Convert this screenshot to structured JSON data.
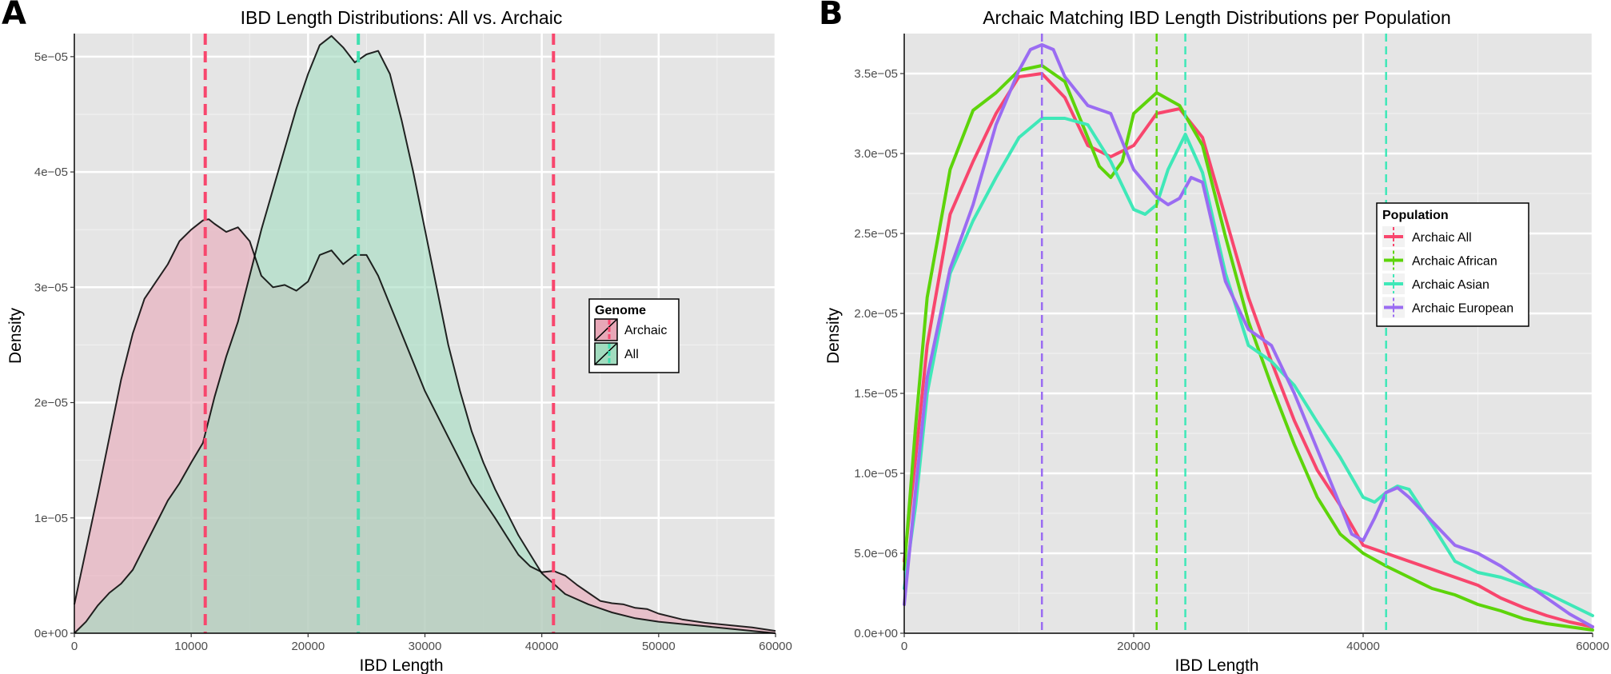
{
  "chart_data": [
    {
      "panel_label": "A",
      "type": "area",
      "title": "IBD Length Distributions: All vs. Archaic",
      "xlabel": "IBD Length",
      "ylabel": "Density",
      "xlim": [
        0,
        60000
      ],
      "ylim": [
        0,
        5.2e-05
      ],
      "xticks": [
        0,
        10000,
        20000,
        30000,
        40000,
        50000,
        60000
      ],
      "xtick_labels": [
        "0",
        "10000",
        "20000",
        "30000",
        "40000",
        "50000",
        "60000"
      ],
      "yticks": [
        0,
        1e-05,
        2e-05,
        3e-05,
        4e-05,
        5e-05
      ],
      "ytick_labels": [
        "0e+00",
        "1e−05",
        "2e−05",
        "3e−05",
        "4e−05",
        "5e−05"
      ],
      "grid": true,
      "legend": {
        "title": "Genome",
        "placement": "right",
        "entries": [
          "Archaic",
          "All"
        ]
      },
      "series": [
        {
          "name": "Archaic",
          "color": "#f8766d",
          "fill": "#e8a7b7",
          "x": [
            0,
            2000,
            4000,
            5000,
            6000,
            7000,
            8000,
            9000,
            10000,
            11000,
            11500,
            12000,
            13000,
            14000,
            15000,
            16000,
            17000,
            18000,
            19000,
            20000,
            21000,
            22000,
            23000,
            24000,
            25000,
            26000,
            28000,
            30000,
            32000,
            34000,
            36000,
            38000,
            39000,
            40000,
            41000,
            42000,
            43000,
            44000,
            45000,
            46000,
            47000,
            48000,
            49000,
            50000,
            52000,
            54000,
            56000,
            58000,
            60000
          ],
          "y": [
            2.5e-06,
            1.2e-05,
            2.2e-05,
            2.6e-05,
            2.9e-05,
            3.05e-05,
            3.2e-05,
            3.4e-05,
            3.5e-05,
            3.58e-05,
            3.59e-05,
            3.55e-05,
            3.48e-05,
            3.52e-05,
            3.4e-05,
            3.1e-05,
            3e-05,
            3.02e-05,
            2.97e-05,
            3.05e-05,
            3.28e-05,
            3.32e-05,
            3.2e-05,
            3.28e-05,
            3.28e-05,
            3.1e-05,
            2.6e-05,
            2.1e-05,
            1.7e-05,
            1.3e-05,
            1e-05,
            6.8e-06,
            5.8e-06,
            5.3e-06,
            5.4e-06,
            5e-06,
            4.2e-06,
            3.5e-06,
            2.8e-06,
            2.6e-06,
            2.5e-06,
            2.2e-06,
            2.1e-06,
            1.7e-06,
            1.2e-06,
            9e-07,
            7e-07,
            5e-07,
            2e-07
          ]
        },
        {
          "name": "All",
          "color": "#00ba38",
          "fill": "#a2dcbf",
          "x": [
            0,
            1000,
            2000,
            3000,
            4000,
            5000,
            6000,
            7000,
            8000,
            9000,
            10000,
            11000,
            12000,
            13000,
            14000,
            15000,
            16000,
            17000,
            18000,
            19000,
            20000,
            21000,
            22000,
            23000,
            24000,
            25000,
            26000,
            27000,
            28000,
            29000,
            30000,
            31000,
            32000,
            33000,
            34000,
            35000,
            36000,
            38000,
            40000,
            42000,
            44000,
            46000,
            48000,
            50000,
            52000,
            54000,
            56000,
            58000,
            60000
          ],
          "y": [
            0,
            1e-06,
            2.4e-06,
            3.5e-06,
            4.3e-06,
            5.5e-06,
            7.5e-06,
            9.5e-06,
            1.15e-05,
            1.3e-05,
            1.48e-05,
            1.65e-05,
            2.05e-05,
            2.4e-05,
            2.7e-05,
            3.1e-05,
            3.5e-05,
            3.85e-05,
            4.2e-05,
            4.55e-05,
            4.85e-05,
            5.1e-05,
            5.18e-05,
            5.08e-05,
            4.95e-05,
            5.02e-05,
            5.05e-05,
            4.85e-05,
            4.45e-05,
            4e-05,
            3.5e-05,
            3e-05,
            2.5e-05,
            2.1e-05,
            1.75e-05,
            1.48e-05,
            1.25e-05,
            8.5e-06,
            5.2e-06,
            3.4e-06,
            2.5e-06,
            1.8e-06,
            1.3e-06,
            1e-06,
            8e-07,
            6e-07,
            4e-07,
            2e-07,
            0
          ]
        }
      ],
      "vlines": [
        {
          "x": 11200,
          "color": "#f8466d",
          "series": "Archaic"
        },
        {
          "x": 41000,
          "color": "#f8466d",
          "series": "Archaic"
        },
        {
          "x": 24300,
          "color": "#3fe0b0",
          "series": "All"
        }
      ]
    },
    {
      "panel_label": "B",
      "type": "line",
      "title": "Archaic Matching IBD Length Distributions per Population",
      "xlabel": "IBD Length",
      "ylabel": "Density",
      "xlim": [
        0,
        60000
      ],
      "ylim": [
        0,
        3.75e-05
      ],
      "xticks": [
        0,
        20000,
        40000,
        60000
      ],
      "xtick_labels": [
        "0",
        "20000",
        "40000",
        "60000"
      ],
      "yticks": [
        0,
        5e-06,
        1e-05,
        1.5e-05,
        2e-05,
        2.5e-05,
        3e-05,
        3.5e-05
      ],
      "ytick_labels": [
        "0.0e+00",
        "5.0e−06",
        "1.0e−05",
        "1.5e−05",
        "2.0e−05",
        "2.5e−05",
        "3.0e−05",
        "3.5e−05"
      ],
      "grid": true,
      "legend": {
        "title": "Population",
        "placement": "right",
        "entries": [
          "Archaic All",
          "Archaic African",
          "Archaic Asian",
          "Archaic European"
        ]
      },
      "series": [
        {
          "name": "Archaic All",
          "color": "#f8466d",
          "x": [
            0,
            1000,
            2000,
            4000,
            6000,
            8000,
            10000,
            12000,
            14000,
            16000,
            18000,
            20000,
            22000,
            24000,
            26000,
            28000,
            30000,
            32000,
            34000,
            36000,
            38000,
            40000,
            42000,
            44000,
            46000,
            48000,
            50000,
            52000,
            54000,
            56000,
            58000,
            60000
          ],
          "y": [
            4.5e-06,
            1.1e-05,
            1.8e-05,
            2.62e-05,
            2.95e-05,
            3.25e-05,
            3.48e-05,
            3.5e-05,
            3.35e-05,
            3.05e-05,
            2.98e-05,
            3.05e-05,
            3.25e-05,
            3.28e-05,
            3.1e-05,
            2.6e-05,
            2.1e-05,
            1.7e-05,
            1.33e-05,
            1.02e-05,
            8e-06,
            5.5e-06,
            5e-06,
            4.5e-06,
            4e-06,
            3.5e-06,
            3e-06,
            2.2e-06,
            1.6e-06,
            1.1e-06,
            7e-07,
            4e-07
          ]
        },
        {
          "name": "Archaic African",
          "color": "#5dd40a",
          "x": [
            0,
            1000,
            2000,
            4000,
            6000,
            8000,
            10000,
            12000,
            14000,
            16000,
            17000,
            18000,
            19000,
            20000,
            22000,
            24000,
            26000,
            28000,
            30000,
            32000,
            34000,
            36000,
            38000,
            40000,
            42000,
            44000,
            46000,
            48000,
            50000,
            52000,
            54000,
            56000,
            58000,
            60000
          ],
          "y": [
            4e-06,
            1.3e-05,
            2.1e-05,
            2.9e-05,
            3.27e-05,
            3.38e-05,
            3.52e-05,
            3.55e-05,
            3.45e-05,
            3.1e-05,
            2.92e-05,
            2.85e-05,
            2.95e-05,
            3.25e-05,
            3.38e-05,
            3.3e-05,
            3.05e-05,
            2.48e-05,
            1.95e-05,
            1.55e-05,
            1.18e-05,
            8.5e-06,
            6.2e-06,
            5e-06,
            4.2e-06,
            3.5e-06,
            2.8e-06,
            2.4e-06,
            1.8e-06,
            1.4e-06,
            9e-07,
            6e-07,
            4e-07,
            2e-07
          ]
        },
        {
          "name": "Archaic Asian",
          "color": "#3fe8b8",
          "x": [
            0,
            1000,
            2000,
            4000,
            6000,
            8000,
            10000,
            12000,
            14000,
            16000,
            18000,
            20000,
            21000,
            22000,
            23000,
            24500,
            26000,
            28000,
            30000,
            32000,
            34000,
            36000,
            38000,
            40000,
            41000,
            42000,
            43000,
            44000,
            46000,
            48000,
            50000,
            52000,
            54000,
            56000,
            58000,
            60000
          ],
          "y": [
            2.8e-06,
            8e-06,
            1.5e-05,
            2.25e-05,
            2.58e-05,
            2.85e-05,
            3.1e-05,
            3.22e-05,
            3.22e-05,
            3.18e-05,
            2.95e-05,
            2.65e-05,
            2.62e-05,
            2.68e-05,
            2.9e-05,
            3.12e-05,
            2.88e-05,
            2.25e-05,
            1.8e-05,
            1.7e-05,
            1.55e-05,
            1.32e-05,
            1.1e-05,
            8.5e-06,
            8.2e-06,
            8.8e-06,
            9.2e-06,
            9e-06,
            6.8e-06,
            4.5e-06,
            3.8e-06,
            3.5e-06,
            3e-06,
            2.5e-06,
            1.8e-06,
            1.1e-06
          ]
        },
        {
          "name": "Archaic European",
          "color": "#9a6cf2",
          "x": [
            0,
            1000,
            2000,
            4000,
            6000,
            8000,
            10000,
            11000,
            12000,
            13000,
            14000,
            16000,
            18000,
            20000,
            22000,
            23000,
            24000,
            25000,
            26000,
            28000,
            30000,
            32000,
            34000,
            36000,
            38000,
            39000,
            40000,
            41000,
            42000,
            43000,
            44000,
            46000,
            48000,
            50000,
            52000,
            54000,
            56000,
            58000,
            60000
          ],
          "y": [
            1.8e-06,
            9e-06,
            1.6e-05,
            2.28e-05,
            2.68e-05,
            3.18e-05,
            3.52e-05,
            3.65e-05,
            3.68e-05,
            3.65e-05,
            3.48e-05,
            3.3e-05,
            3.25e-05,
            2.9e-05,
            2.73e-05,
            2.68e-05,
            2.72e-05,
            2.85e-05,
            2.82e-05,
            2.2e-05,
            1.9e-05,
            1.8e-05,
            1.5e-05,
            1.15e-05,
            8e-06,
            6.2e-06,
            5.8e-06,
            7.2e-06,
            8.8e-06,
            9.1e-06,
            8.5e-06,
            7e-06,
            5.5e-06,
            5e-06,
            4.2e-06,
            3.2e-06,
            2.2e-06,
            1.2e-06,
            4e-07
          ]
        }
      ],
      "vlines": [
        {
          "x": 12000,
          "color": "#9a6cf2",
          "series": "Archaic European"
        },
        {
          "x": 22000,
          "color": "#5dd40a",
          "series": "Archaic African"
        },
        {
          "x": 24500,
          "color": "#3fe8b8",
          "series": "Archaic Asian"
        },
        {
          "x": 42000,
          "color": "#3fe8b8",
          "series": "Archaic Asian"
        }
      ]
    }
  ]
}
